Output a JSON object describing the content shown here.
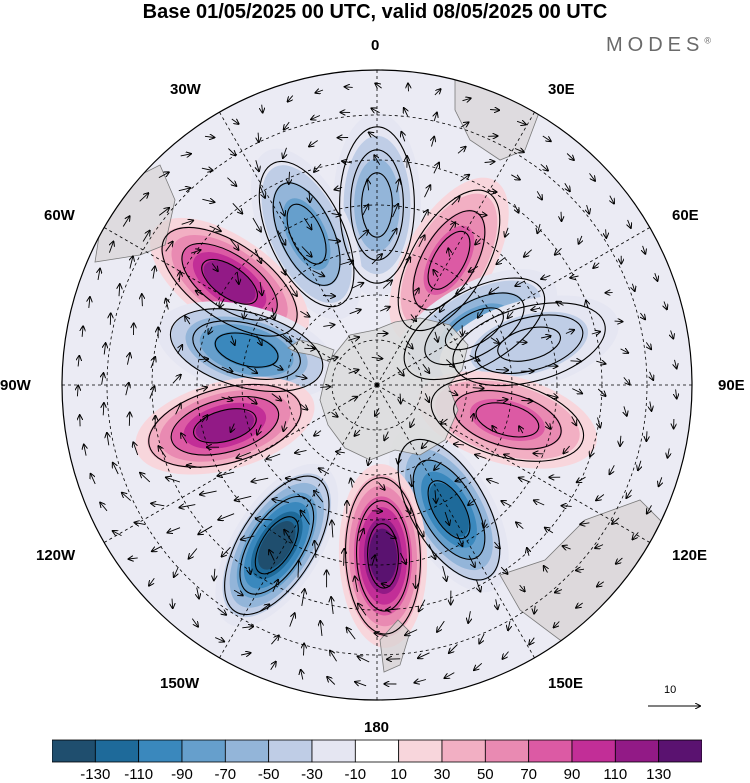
{
  "title": "Base 01/05/2025 00 UTC, valid 08/05/2025 00 UTC",
  "brand": "MODES",
  "brand_mark": "®",
  "longitude_labels": {
    "lon_0": "0",
    "lon_30e": "30E",
    "lon_60e": "60E",
    "lon_90e": "90E",
    "lon_120e": "120E",
    "lon_150e": "150E",
    "lon_180": "180",
    "lon_150w": "150W",
    "lon_120w": "120W",
    "lon_90w": "90W",
    "lon_60w": "60W",
    "lon_30w": "30W"
  },
  "reference_vector_label": "10",
  "colorbar": {
    "colors": [
      "#1f4e6e",
      "#1e6a9a",
      "#3a88bd",
      "#669fcc",
      "#93b5d9",
      "#bfcde6",
      "#e5e6f2",
      "#ffffff",
      "#f8d6dc",
      "#f2afc3",
      "#e98ab2",
      "#dc5aa4",
      "#c22e97",
      "#921a86",
      "#5a1270"
    ],
    "tick_labels": [
      "-130",
      "-110",
      "-90",
      "-70",
      "-50",
      "-30",
      "-10",
      "10",
      "30",
      "50",
      "70",
      "90",
      "110",
      "130"
    ]
  },
  "anomaly_centers": [
    {
      "lon": 0,
      "lat": -50,
      "value": -60
    },
    {
      "lon": -25,
      "lat": -53,
      "value": -70
    },
    {
      "lon": 30,
      "lat": -58,
      "value": 70
    },
    {
      "lon": -55,
      "lat": -50,
      "value": 110
    },
    {
      "lon": 60,
      "lat": -65,
      "value": -80
    },
    {
      "lon": -75,
      "lat": -60,
      "value": -100
    },
    {
      "lon": 75,
      "lat": -55,
      "value": -30
    },
    {
      "lon": 105,
      "lat": -60,
      "value": 70
    },
    {
      "lon": -105,
      "lat": -55,
      "value": 120
    },
    {
      "lon": 150,
      "lat": -58,
      "value": -110
    },
    {
      "lon": -148,
      "lat": -48,
      "value": -130
    },
    {
      "lon": 178,
      "lat": -52,
      "value": 140
    }
  ]
}
